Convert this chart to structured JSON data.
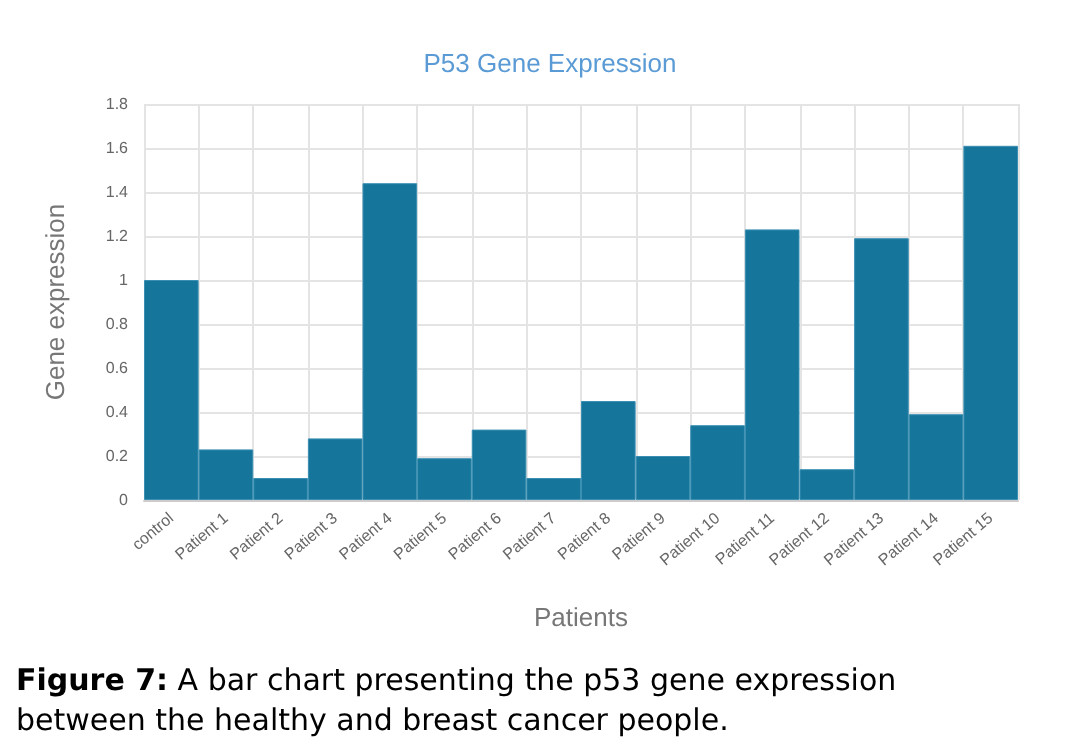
{
  "chart_data": {
    "type": "bar",
    "title": "P53 Gene Expression",
    "xlabel": "Patients",
    "ylabel": "Gene expression",
    "categories": [
      "control",
      "Patient 1",
      "Patient 2",
      "Patient 3",
      "Patient 4",
      "Patient 5",
      "Patient 6",
      "Patient 7",
      "Patient 8",
      "Patient 9",
      "Patient 10",
      "Patient 11",
      "Patient 12",
      "Patient 13",
      "Patient 14",
      "Patient 15"
    ],
    "values": [
      1.0,
      0.23,
      0.1,
      0.28,
      1.44,
      0.19,
      0.32,
      0.1,
      0.45,
      0.2,
      0.34,
      1.23,
      0.14,
      1.19,
      0.39,
      1.61
    ],
    "color": "#16759b",
    "ylim": [
      0,
      1.8
    ],
    "yticks": [
      0,
      0.2,
      0.4,
      0.6,
      0.8,
      1,
      1.2,
      1.4,
      1.6,
      1.8
    ],
    "grid": true,
    "annotations": [
      "Figure 7: A bar chart presenting the p53 gene expression between the healthy and breast cancer people."
    ]
  }
}
